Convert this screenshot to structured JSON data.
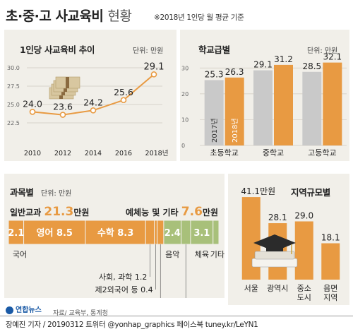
{
  "header": {
    "title_bold": "초·중·고 사교육비",
    "title_light": "현황",
    "note": "※2018년 1인당 월 평균 기준"
  },
  "colors": {
    "orange": "#e89a42",
    "gray": "#c9c9c9",
    "green": "#a8c07a",
    "line": "#e89a42",
    "panel": "#f1efe9"
  },
  "line_chart": {
    "title": "1인당 사교육비 추이",
    "unit": "단위: 만원"
  },
  "school_chart": {
    "title": "학교급별",
    "unit": "단위: 만원",
    "legend_2017": "2017년",
    "legend_2018": "2018년"
  },
  "subject_chart": {
    "title": "과목별",
    "unit": "단위: 만원",
    "general_label": "일반교과",
    "general_value": "21.3",
    "general_suffix": "만원",
    "arts_label": "예체능 및 기타",
    "arts_value": "7.6",
    "arts_suffix": "만원"
  },
  "region_chart": {
    "title": "지역규모별"
  },
  "footer": {
    "source": "자료/ 교육부, 통계청",
    "logo": "연합뉴스",
    "credit": "장예진 기자 / 20190312 트위터 @yonhap_graphics  페이스북 tuney.kr/LeYN1"
  },
  "chart_data": [
    {
      "type": "line",
      "title": "1인당 사교육비 추이",
      "x": [
        "2010",
        "2012",
        "2014",
        "2016",
        "2018년"
      ],
      "y": [
        24.0,
        23.6,
        24.2,
        25.6,
        29.1
      ],
      "y_labels": [
        "24.0",
        "23.6",
        "24.2",
        "25.6",
        "29.1"
      ],
      "yticks": [
        "30.0",
        "27.5",
        "25.0",
        "22.5"
      ],
      "ylim": [
        22.5,
        30.0
      ],
      "grid": true
    },
    {
      "type": "bar",
      "title": "학교급별",
      "categories": [
        "초등학교",
        "중학교",
        "고등학교"
      ],
      "series": [
        {
          "name": "2017년",
          "values": [
            25.3,
            29.1,
            28.5
          ],
          "labels": [
            "25.3",
            "29.1",
            "28.5"
          ]
        },
        {
          "name": "2018년",
          "values": [
            26.3,
            31.2,
            32.1
          ],
          "labels": [
            "26.3",
            "31.2",
            "32.1"
          ]
        }
      ],
      "yticks": [
        "30",
        "20",
        "10",
        "0"
      ],
      "ylim": [
        0,
        35
      ],
      "grid": true
    },
    {
      "type": "bar",
      "title": "과목별",
      "orientation": "stacked-horizontal",
      "segments": [
        {
          "name": "국어",
          "value": 2.1,
          "label": "2.1",
          "group": "general",
          "inside": true
        },
        {
          "name": "영어",
          "value": 8.5,
          "label": "영어 8.5",
          "group": "general",
          "inside": true
        },
        {
          "name": "수학",
          "value": 8.3,
          "label": "수학 8.3",
          "group": "general",
          "inside": true
        },
        {
          "name": "사회, 과학",
          "value": 1.2,
          "label": "사회, 과학 1.2",
          "group": "general",
          "inside": false
        },
        {
          "name": "제2외국어 등",
          "value": 0.4,
          "label": "제2외국어 등 0.4",
          "group": "general",
          "inside": false
        },
        {
          "name": "논술",
          "value": 0.9,
          "label": "논술 0.9",
          "group": "general",
          "inside": false
        },
        {
          "name": "음악",
          "value": 2.4,
          "label": "2.4",
          "group": "arts",
          "inside": true
        },
        {
          "name": "미술",
          "value": 1.3,
          "label": "미술 1.3",
          "group": "arts",
          "inside": false
        },
        {
          "name": "체육",
          "value": 3.1,
          "label": "3.1",
          "group": "arts",
          "inside": true
        },
        {
          "name": "기타",
          "value": 0.8,
          "label": "",
          "group": "arts",
          "inside": false
        }
      ],
      "below_labels": [
        "국어",
        "음악",
        "체육",
        "기타"
      ]
    },
    {
      "type": "bar",
      "title": "지역규모별",
      "categories": [
        "서울",
        "광역시",
        "중소\n도시",
        "읍면\n지역"
      ],
      "values": [
        41.1,
        28.1,
        29.0,
        18.1
      ],
      "labels": [
        "41.1만원",
        "28.1",
        "29.0",
        "18.1"
      ],
      "ylim": [
        0,
        45
      ]
    }
  ]
}
